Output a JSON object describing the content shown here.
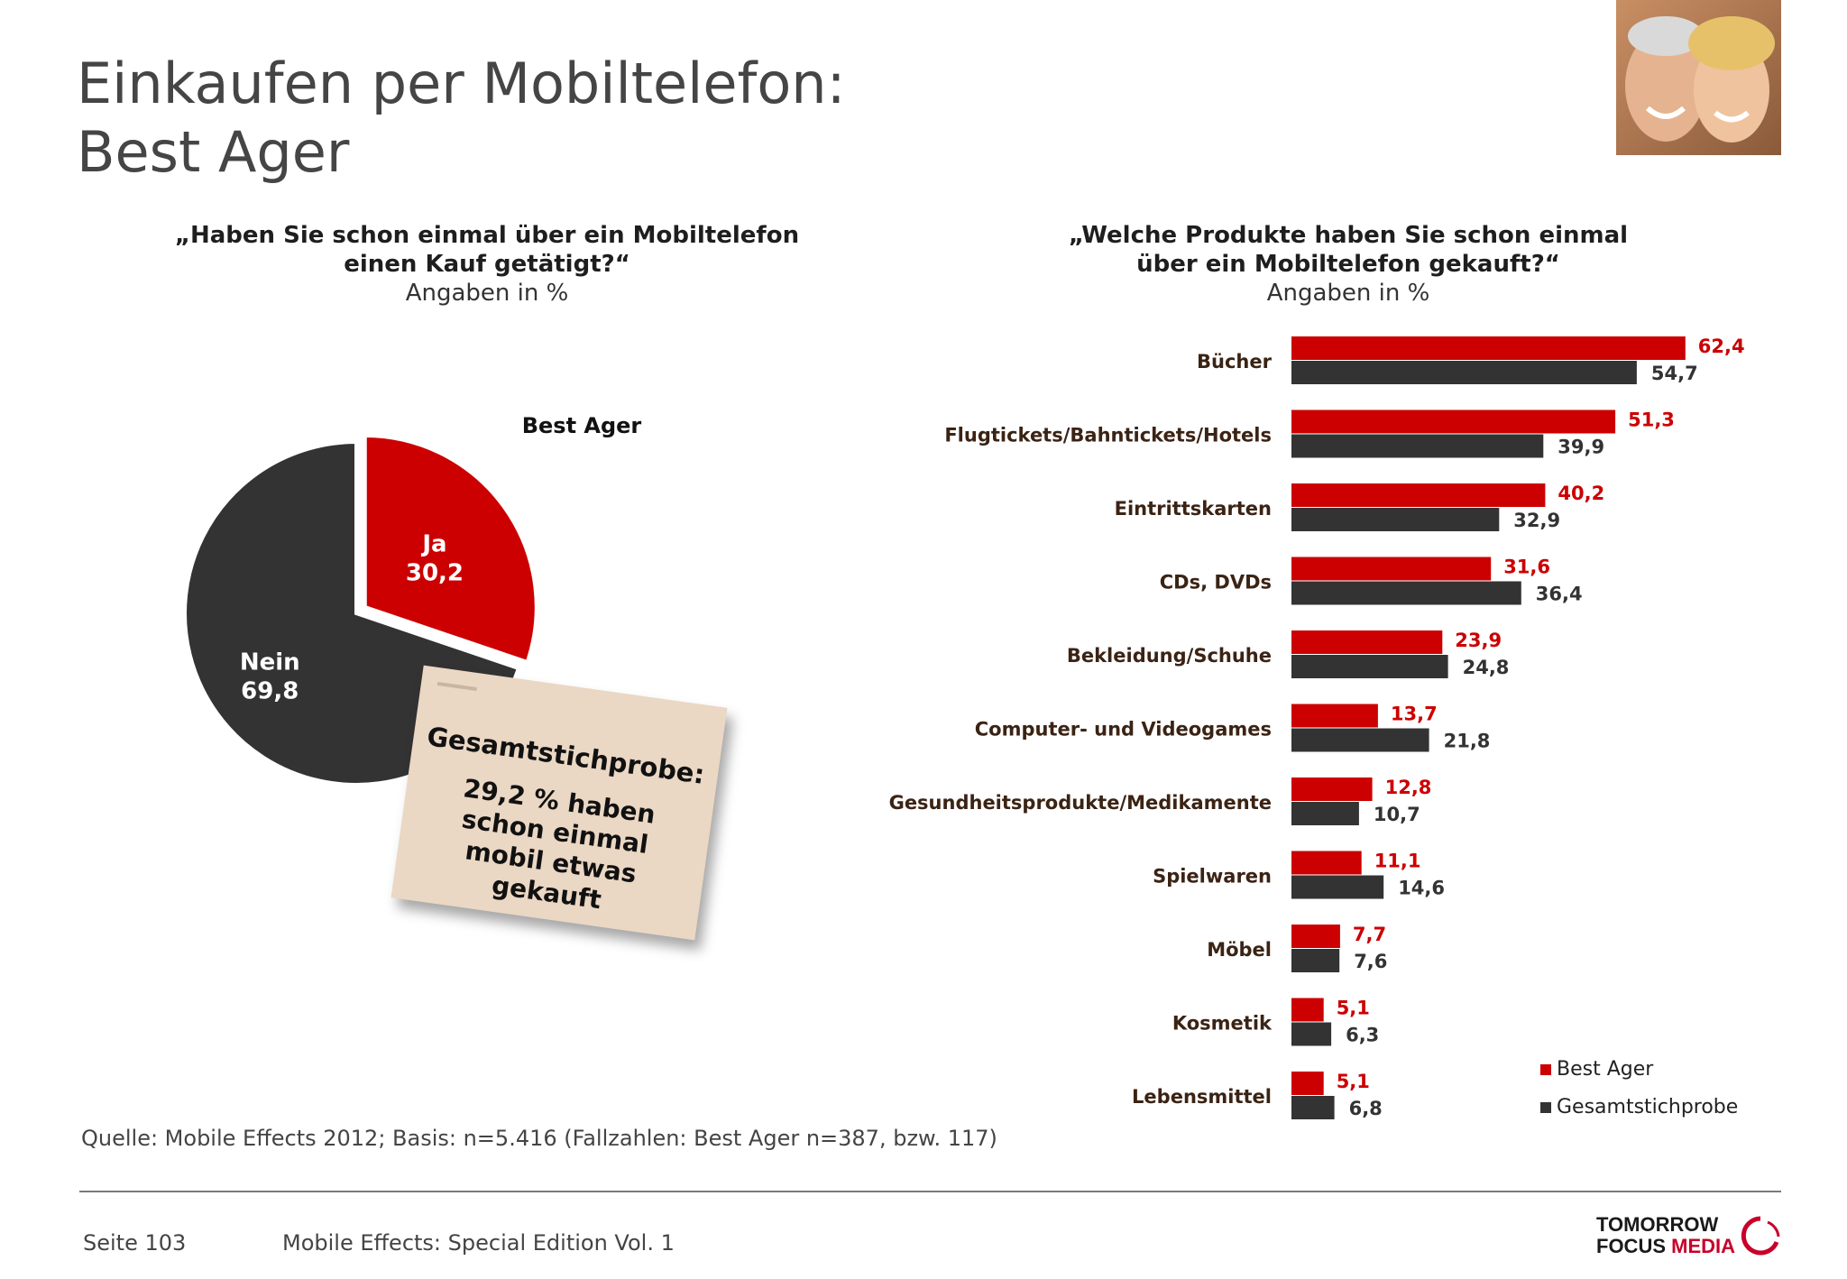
{
  "title": {
    "line1": "Einkaufen per Mobiltelefon:",
    "line2": "Best Ager"
  },
  "colors": {
    "red": "#cc0000",
    "dark": "#333333",
    "note_bg": "#ead7c4",
    "label_brown": "#3b2314"
  },
  "left_chart": {
    "question": "„Haben Sie schon einmal über ein Mobiltelefon einen Kauf getätigt?“",
    "question_line1": "„Haben Sie schon einmal über ein Mobiltelefon",
    "question_line2": "einen Kauf getätigt?“",
    "unit": "Angaben in %",
    "pie_label": "Best Ager"
  },
  "right_chart": {
    "question_line1": "„Welche Produkte haben Sie schon einmal",
    "question_line2": "über ein Mobiltelefon gekauft?“",
    "unit": "Angaben in %"
  },
  "note": {
    "heading": "Gesamtstichprobe:",
    "body": "29,2 % haben schon einmal mobil etwas gekauft"
  },
  "chart_data": [
    {
      "type": "pie",
      "title": "Best Ager",
      "slices": [
        {
          "label": "Ja",
          "value": 30.2,
          "display": "30,2",
          "color": "#cc0000"
        },
        {
          "label": "Nein",
          "value": 69.8,
          "display": "69,8",
          "color": "#333333"
        }
      ]
    },
    {
      "type": "bar",
      "orientation": "horizontal",
      "categories": [
        "Bücher",
        "Flugtickets/Bahntickets/Hotels",
        "Eintrittskarten",
        "CDs, DVDs",
        "Bekleidung/Schuhe",
        "Computer- und Videogames",
        "Gesundheitsprodukte/Medikamente",
        "Spielwaren",
        "Möbel",
        "Kosmetik",
        "Lebensmittel"
      ],
      "series": [
        {
          "name": "Best Ager",
          "color": "#cc0000",
          "values": [
            62.4,
            51.3,
            40.2,
            31.6,
            23.9,
            13.7,
            12.8,
            11.1,
            7.7,
            5.1,
            5.1
          ],
          "labels": [
            "62,4",
            "51,3",
            "40,2",
            "31,6",
            "23,9",
            "13,7",
            "12,8",
            "11,1",
            "7,7",
            "5,1",
            "5,1"
          ]
        },
        {
          "name": "Gesamtstichprobe",
          "color": "#333333",
          "values": [
            54.7,
            39.9,
            32.9,
            36.4,
            24.8,
            21.8,
            10.7,
            14.6,
            7.6,
            6.3,
            6.8
          ],
          "labels": [
            "54,7",
            "39,9",
            "32,9",
            "36,4",
            "24,8",
            "21,8",
            "10,7",
            "14,6",
            "7,6",
            "6,3",
            "6,8"
          ]
        }
      ],
      "legend": "bottom-right"
    }
  ],
  "source": "Quelle: Mobile Effects 2012; Basis: n=5.416 (Fallzahlen: Best Ager n=387, bzw. 117)",
  "footer": {
    "page": "Seite 103",
    "publication": "Mobile Effects: Special Edition Vol. 1",
    "logo_line1": "TOMORROW",
    "logo_line2a": "FOCUS",
    "logo_line2b": "MEDIA"
  }
}
